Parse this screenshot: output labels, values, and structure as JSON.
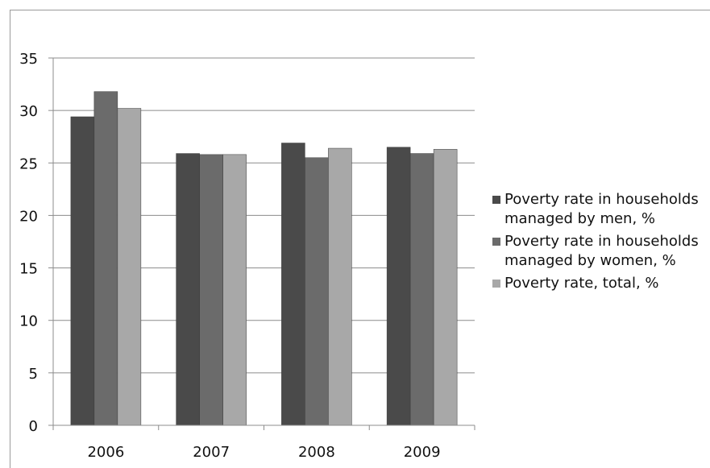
{
  "chart_data": {
    "type": "bar",
    "categories": [
      "2006",
      "2007",
      "2008",
      "2009"
    ],
    "series": [
      {
        "name": "Poverty rate in households managed by men, %",
        "values": [
          29.4,
          25.9,
          26.9,
          26.5
        ],
        "color": "#4a4a4a"
      },
      {
        "name": "Poverty rate in households managed by women, %",
        "values": [
          31.8,
          25.8,
          25.5,
          25.9
        ],
        "color": "#6b6b6b"
      },
      {
        "name": "Poverty rate, total, %",
        "values": [
          30.2,
          25.8,
          26.4,
          26.3
        ],
        "color": "#a8a8a8"
      }
    ],
    "ylim": [
      0,
      35
    ],
    "yticks": [
      "0",
      "5",
      "10",
      "15",
      "20",
      "25",
      "30",
      "35"
    ],
    "grid": true,
    "legend_position": "right",
    "title": "",
    "xlabel": "",
    "ylabel": ""
  }
}
